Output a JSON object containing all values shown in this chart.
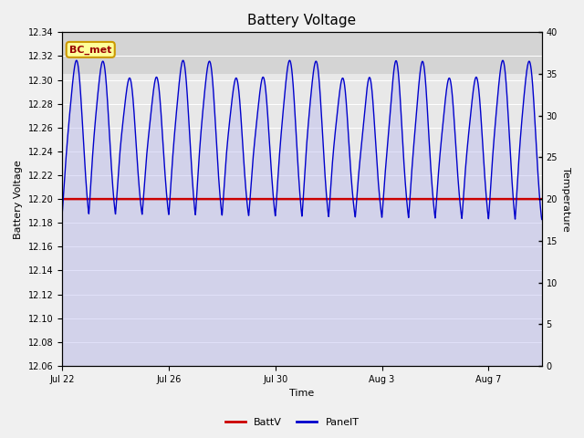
{
  "title": "Battery Voltage",
  "xlabel": "Time",
  "ylabel_left": "Battery Voltage",
  "ylabel_right": "Temperature",
  "ylim_left": [
    12.06,
    12.34
  ],
  "ylim_right": [
    0,
    40
  ],
  "yticks_left": [
    12.06,
    12.08,
    12.1,
    12.12,
    12.14,
    12.16,
    12.18,
    12.2,
    12.22,
    12.24,
    12.26,
    12.28,
    12.3,
    12.32,
    12.34
  ],
  "yticks_right": [
    0,
    5,
    10,
    15,
    20,
    25,
    30,
    35,
    40
  ],
  "xtick_labels": [
    "Jul 22",
    "Jul 26",
    "Jul 30",
    "Aug 3",
    "Aug 7"
  ],
  "xtick_positions": [
    0,
    4,
    8,
    12,
    16
  ],
  "batt_v": 12.2,
  "batt_color": "#cc0000",
  "panel_color": "#0000cc",
  "panel_fill_color": "#aaaaee",
  "bg_color_plot": "#e8e8e8",
  "bg_color_upper": "#d4d4d4",
  "bg_upper_threshold": 12.305,
  "legend_batt_label": "BattV",
  "legend_panel_label": "PanelT",
  "annotation_text": "BC_met",
  "annotation_bg": "#ffff99",
  "annotation_border": "#cc9900",
  "annotation_text_color": "#990000",
  "num_days": 18,
  "figsize": [
    6.4,
    4.8
  ],
  "dpi": 100
}
